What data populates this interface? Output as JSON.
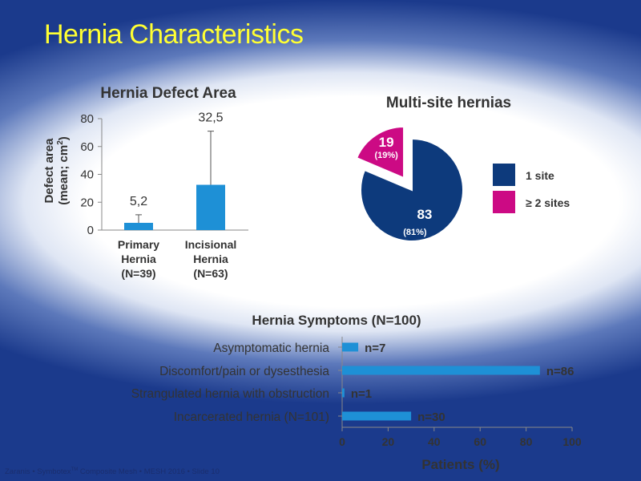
{
  "slide": {
    "title": "Hernia Characteristics",
    "footer_before": "Zaranis • Symbotex",
    "footer_tm": "TM",
    "footer_after": " Composite Mesh • MESH 2016 • Slide 10"
  },
  "colors": {
    "title": "#ffff33",
    "bar_blue": "#1e90d6",
    "pie_navy": "#0d3a7c",
    "pie_magenta": "#cc0a84",
    "axis_text": "#333333",
    "background_blue": "#1b3a8c"
  },
  "chart_data": [
    {
      "type": "bar",
      "title": "Hernia Defect Area",
      "ylabel_line1": "Defect area",
      "ylabel_line2": "(mean; cm",
      "ylabel_sup": "2",
      "ylabel_close": ")",
      "ylim": [
        0,
        80
      ],
      "yticks": [
        0,
        20,
        40,
        60,
        80
      ],
      "ytick_labels": [
        "0",
        "20",
        "40",
        "60",
        "80"
      ],
      "categories": [
        {
          "lines": [
            "Primary",
            "Hernia",
            "(N=39)"
          ]
        },
        {
          "lines": [
            "Incisional",
            "Hernia",
            "(N=63)"
          ]
        }
      ],
      "values": [
        5.2,
        32.5
      ],
      "value_labels": [
        "5,2",
        "32,5"
      ],
      "error_upper": [
        11,
        71
      ],
      "error_lower": [
        0,
        0
      ],
      "grid": false
    },
    {
      "type": "pie",
      "title": "Multi-site hernias",
      "slices": [
        {
          "label": "1 site",
          "value": 83,
          "value_label": "83",
          "pct_label": "(81%)",
          "color": "#0d3a7c"
        },
        {
          "label": "≥ 2 sites",
          "value": 19,
          "value_label": "19",
          "pct_label": "(19%)",
          "color": "#cc0a84",
          "exploded": true
        }
      ],
      "legend_position": "right"
    },
    {
      "type": "bar",
      "orientation": "horizontal",
      "title": "Hernia Symptoms (N=100)",
      "xlabel": "Patients (%)",
      "xlim": [
        0,
        100
      ],
      "xticks": [
        0,
        20,
        40,
        60,
        80,
        100
      ],
      "xtick_labels": [
        "0",
        "20",
        "40",
        "60",
        "80",
        "100"
      ],
      "categories": [
        "Asymptomatic hernia",
        "Discomfort/pain or dysesthesia",
        "Strangulated hernia with obstruction",
        "Incarcerated hernia (N=101)"
      ],
      "values": [
        7,
        86,
        1,
        30
      ],
      "value_labels": [
        "n=7",
        "n=86",
        "n=1",
        "n=30"
      ],
      "grid": false
    }
  ]
}
